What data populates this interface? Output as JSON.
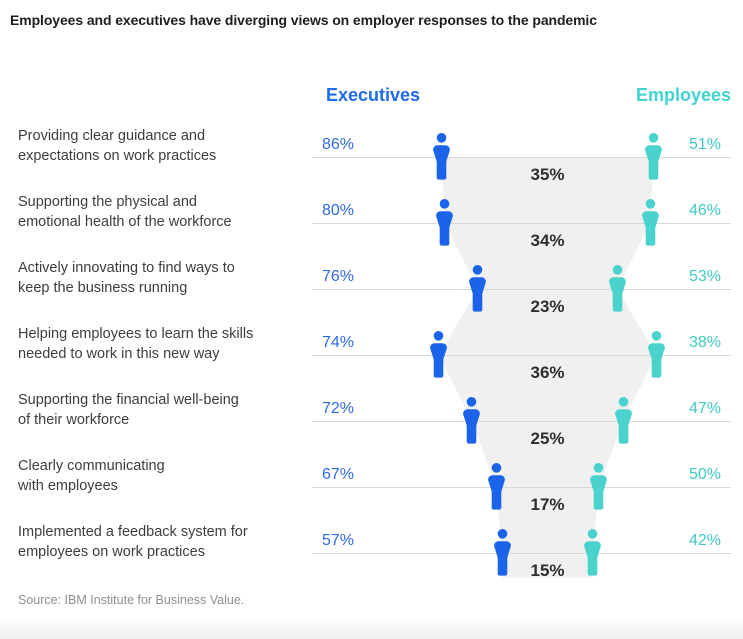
{
  "title": "Employees and executives have diverging views on employer responses to the pandemic",
  "legend": {
    "executives": "Executives",
    "employees": "Employees"
  },
  "source": "Source: IBM Institute for Business Value.",
  "chart_data": {
    "type": "pictogram-gap-comparison",
    "title": "Employees and executives have diverging views on employer responses to the pandemic",
    "legend_position": "top",
    "unit": "%",
    "categories": [
      "Providing clear guidance and\nexpectations on work practices",
      "Supporting the physical and\nemotional health of the workforce",
      "Actively innovating to find ways to\nkeep the business running",
      "Helping employees to learn the skills\nneeded to work in this new way",
      "Supporting the financial well-being\nof their workforce",
      "Clearly communicating\nwith employees",
      "Implemented a feedback system for\nemployees on work practices"
    ],
    "series": [
      {
        "name": "Executives",
        "values": [
          86,
          80,
          76,
          74,
          72,
          67,
          57
        ]
      },
      {
        "name": "Employees",
        "values": [
          51,
          46,
          53,
          38,
          47,
          50,
          42
        ]
      }
    ],
    "gaps": [
      35,
      34,
      23,
      36,
      25,
      17,
      15
    ],
    "colors": {
      "executives": "#1b63e8",
      "employees": "#4ad2cd",
      "executives_text": "#2e6ae2",
      "employees_text": "#3fc9c4",
      "executives_header": "#1f6beb",
      "employees_header": "#3fd4d1",
      "gap_band": "#f0f0f0",
      "gap_text": "#2e2e2e",
      "row_line": "#d9d9d9"
    }
  }
}
